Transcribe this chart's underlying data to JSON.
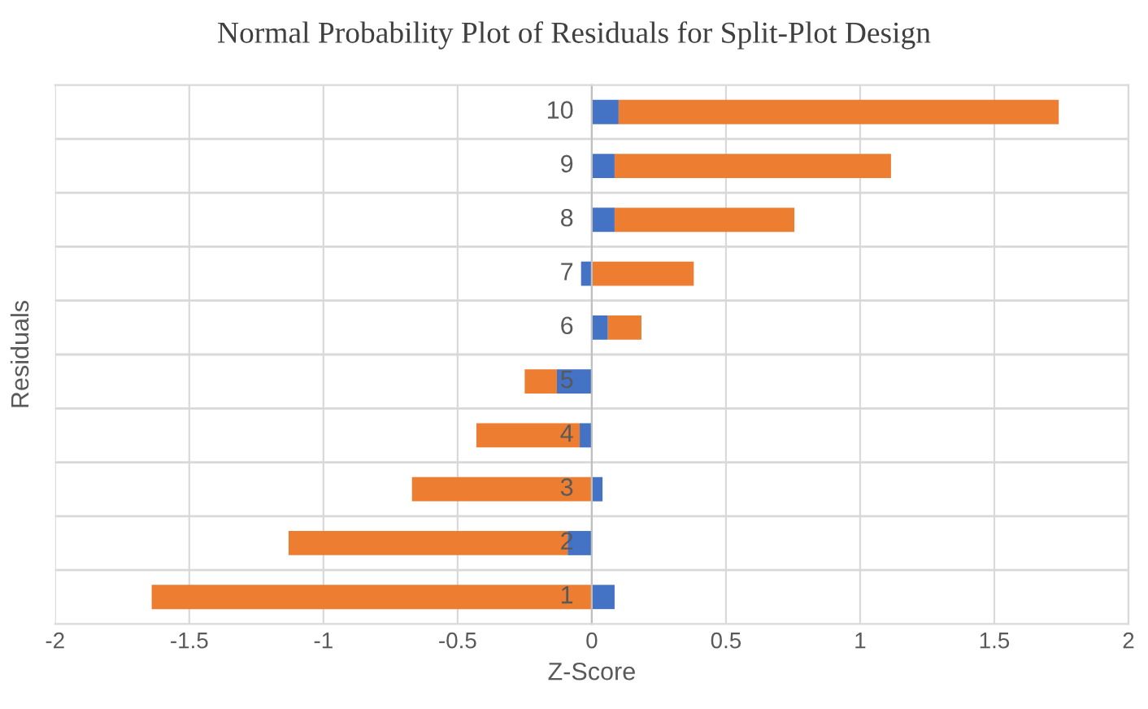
{
  "chart_data": {
    "type": "bar",
    "orientation": "horizontal",
    "stacked": true,
    "title": "Normal Probability Plot of Residuals for Split-Plot Design",
    "xlabel": "Z-Score",
    "ylabel": "Residuals",
    "categories": [
      "10",
      "9",
      "8",
      "7",
      "6",
      "5",
      "4",
      "3",
      "2",
      "1"
    ],
    "series": [
      {
        "color": "#4472c4",
        "values": [
          0.1,
          0.085,
          0.085,
          -0.04,
          0.06,
          -0.13,
          -0.045,
          0.04,
          -0.09,
          0.085
        ]
      },
      {
        "color": "#ed7d31",
        "values": [
          1.64,
          1.03,
          0.67,
          0.38,
          0.125,
          -0.12,
          -0.385,
          -0.67,
          -1.04,
          -1.64
        ]
      }
    ],
    "xlim": [
      -2,
      2
    ],
    "xticks": [
      -2,
      -1.5,
      -1,
      -0.5,
      0,
      0.5,
      1,
      1.5,
      2
    ],
    "grid": true,
    "legend": false
  }
}
